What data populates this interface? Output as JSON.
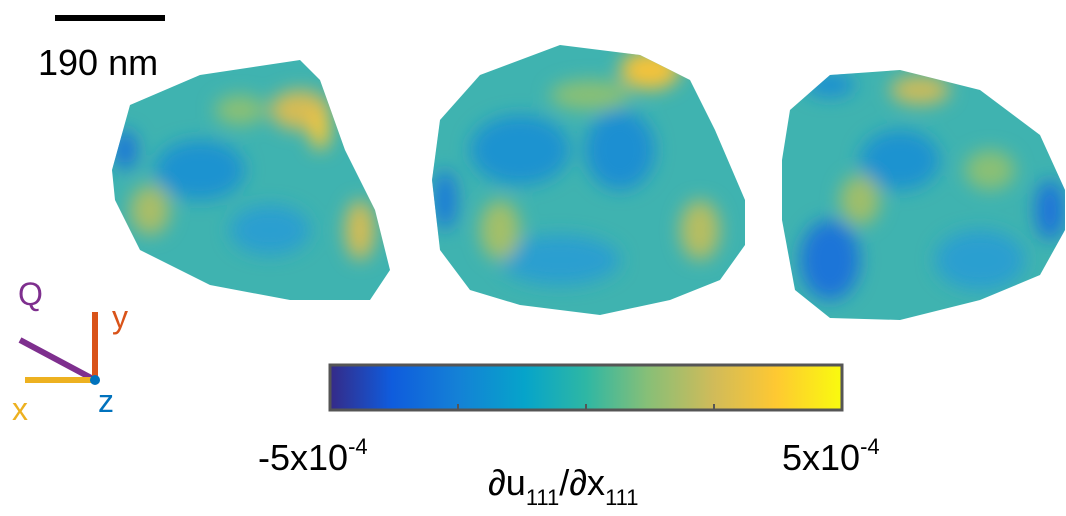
{
  "scale_bar": {
    "label": "190 nm"
  },
  "axes_glyph": {
    "q": "Q",
    "y": "y",
    "x": "x",
    "z": "z"
  },
  "colorbar": {
    "min_label": {
      "base": "-5x10",
      "exponent": "-4"
    },
    "max_label": {
      "base": "5x10",
      "exponent": "-4"
    },
    "title": {
      "numerator": "∂u",
      "numerator_sub": "111",
      "separator": "/∂x",
      "denominator_sub": "111"
    }
  }
}
